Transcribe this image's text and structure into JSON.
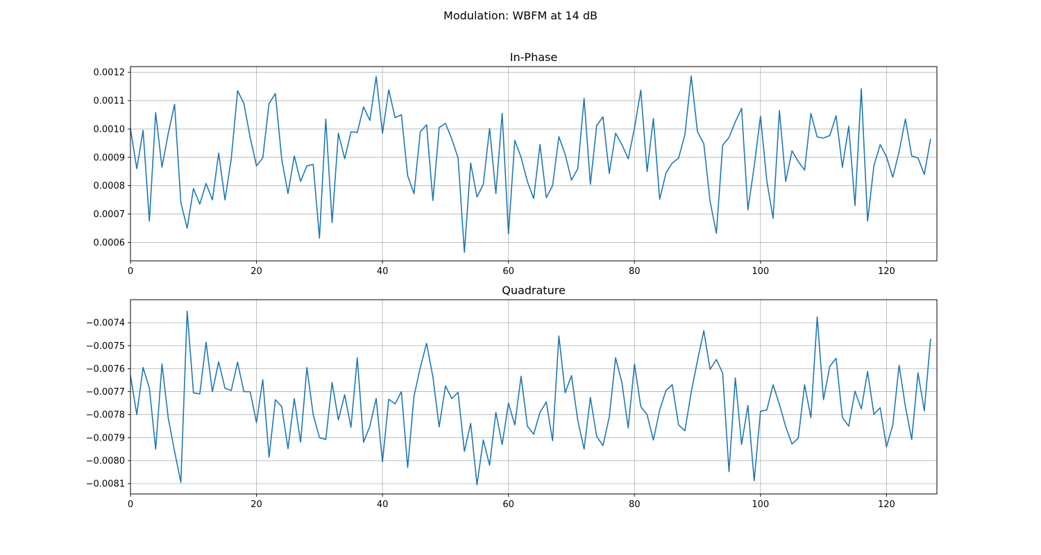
{
  "figure": {
    "suptitle": "Modulation: WBFM at 14 dB"
  },
  "chart_data": [
    {
      "type": "line",
      "title": "In-Phase",
      "xlabel": "",
      "ylabel": "",
      "xlim": [
        0,
        128
      ],
      "ylim": [
        0.000535,
        0.00122
      ],
      "grid": true,
      "line_color": "#1f77b4",
      "x_ticks": [
        0,
        20,
        40,
        60,
        80,
        100,
        120
      ],
      "x_tick_labels": [
        "0",
        "20",
        "40",
        "60",
        "80",
        "100",
        "120"
      ],
      "y_ticks": [
        0.0006,
        0.0007,
        0.0008,
        0.0009,
        0.001,
        0.0011,
        0.0012
      ],
      "y_tick_labels": [
        "0.0006",
        "0.0007",
        "0.0008",
        "0.0009",
        "0.0010",
        "0.0011",
        "0.0012"
      ],
      "values": [
        0.001,
        0.00086,
        0.000995,
        0.000675,
        0.001058,
        0.000865,
        0.000985,
        0.001087,
        0.00074,
        0.00065,
        0.00079,
        0.000735,
        0.000808,
        0.00075,
        0.000915,
        0.00075,
        0.000895,
        0.001135,
        0.00109,
        0.00097,
        0.00087,
        0.000898,
        0.00109,
        0.001125,
        0.000895,
        0.000772,
        0.000905,
        0.000815,
        0.00087,
        0.000875,
        0.000615,
        0.001035,
        0.00067,
        0.000985,
        0.000895,
        0.00099,
        0.000988,
        0.001078,
        0.00103,
        0.001185,
        0.000985,
        0.001138,
        0.00104,
        0.00105,
        0.000835,
        0.000772,
        0.00099,
        0.001015,
        0.000748,
        0.001005,
        0.00102,
        0.000965,
        0.000898,
        0.000565,
        0.00088,
        0.00076,
        0.000805,
        0.001002,
        0.000772,
        0.001055,
        0.00063,
        0.00096,
        0.0009,
        0.000815,
        0.000755,
        0.000945,
        0.000758,
        0.0008,
        0.000973,
        0.00091,
        0.00082,
        0.00086,
        0.001108,
        0.000805,
        0.001012,
        0.001043,
        0.000843,
        0.000985,
        0.000945,
        0.000895,
        0.001003,
        0.001137,
        0.00085,
        0.001037,
        0.000752,
        0.000845,
        0.00088,
        0.000897,
        0.00098,
        0.001187,
        0.00099,
        0.000948,
        0.000745,
        0.000632,
        0.000943,
        0.00097,
        0.001025,
        0.001073,
        0.000715,
        0.000868,
        0.001045,
        0.000818,
        0.000685,
        0.001065,
        0.000815,
        0.000923,
        0.000885,
        0.000855,
        0.001055,
        0.000972,
        0.000968,
        0.000977,
        0.001047,
        0.000865,
        0.00101,
        0.00073,
        0.001142,
        0.000675,
        0.00087,
        0.000945,
        0.000902,
        0.00083,
        0.00092,
        0.001035,
        0.000905,
        0.000898,
        0.00084,
        0.000965
      ]
    },
    {
      "type": "line",
      "title": "Quadrature",
      "xlabel": "",
      "ylabel": "",
      "xlim": [
        0,
        128
      ],
      "ylim": [
        -0.008145,
        -0.0073
      ],
      "grid": true,
      "line_color": "#1f77b4",
      "x_ticks": [
        0,
        20,
        40,
        60,
        80,
        100,
        120
      ],
      "x_tick_labels": [
        "0",
        "20",
        "40",
        "60",
        "80",
        "100",
        "120"
      ],
      "y_ticks": [
        -0.0081,
        -0.008,
        -0.0079,
        -0.0078,
        -0.0077,
        -0.0076,
        -0.0075,
        -0.0074
      ],
      "y_tick_labels": [
        "−0.0081",
        "−0.0080",
        "−0.0079",
        "−0.0078",
        "−0.0077",
        "−0.0076",
        "−0.0075",
        "−0.0074"
      ],
      "values": [
        -0.00763,
        -0.0078,
        -0.007595,
        -0.007685,
        -0.00795,
        -0.00758,
        -0.007815,
        -0.00796,
        -0.008095,
        -0.00735,
        -0.007705,
        -0.00771,
        -0.007485,
        -0.0077,
        -0.00757,
        -0.007685,
        -0.007695,
        -0.007572,
        -0.0077,
        -0.0077,
        -0.007835,
        -0.007648,
        -0.007985,
        -0.007735,
        -0.007765,
        -0.007948,
        -0.00773,
        -0.00792,
        -0.007595,
        -0.0078,
        -0.0079,
        -0.007908,
        -0.00766,
        -0.007823,
        -0.007713,
        -0.007855,
        -0.007553,
        -0.00792,
        -0.00785,
        -0.00773,
        -0.008005,
        -0.007733,
        -0.007753,
        -0.0077,
        -0.00803,
        -0.00772,
        -0.007595,
        -0.00749,
        -0.007635,
        -0.007853,
        -0.007675,
        -0.00773,
        -0.007703,
        -0.00796,
        -0.007838,
        -0.008105,
        -0.00791,
        -0.00802,
        -0.00779,
        -0.00793,
        -0.00775,
        -0.007845,
        -0.007633,
        -0.00785,
        -0.007885,
        -0.00779,
        -0.007745,
        -0.007913,
        -0.007458,
        -0.007705,
        -0.00763,
        -0.007825,
        -0.00795,
        -0.007725,
        -0.007895,
        -0.007935,
        -0.00781,
        -0.007553,
        -0.00766,
        -0.007858,
        -0.00758,
        -0.007765,
        -0.0078,
        -0.00791,
        -0.00778,
        -0.007695,
        -0.00767,
        -0.007845,
        -0.00787,
        -0.007703,
        -0.007565,
        -0.007435,
        -0.007603,
        -0.00756,
        -0.00762,
        -0.008048,
        -0.00764,
        -0.00793,
        -0.00776,
        -0.008088,
        -0.007785,
        -0.00778,
        -0.00767,
        -0.007755,
        -0.007852,
        -0.007928,
        -0.007902,
        -0.00767,
        -0.007813,
        -0.007375,
        -0.007735,
        -0.00759,
        -0.007555,
        -0.007812,
        -0.00785,
        -0.007698,
        -0.007775,
        -0.007613,
        -0.007798,
        -0.00777,
        -0.00794,
        -0.007845,
        -0.007585,
        -0.007765,
        -0.007908,
        -0.007618,
        -0.007783,
        -0.00747
      ]
    }
  ]
}
